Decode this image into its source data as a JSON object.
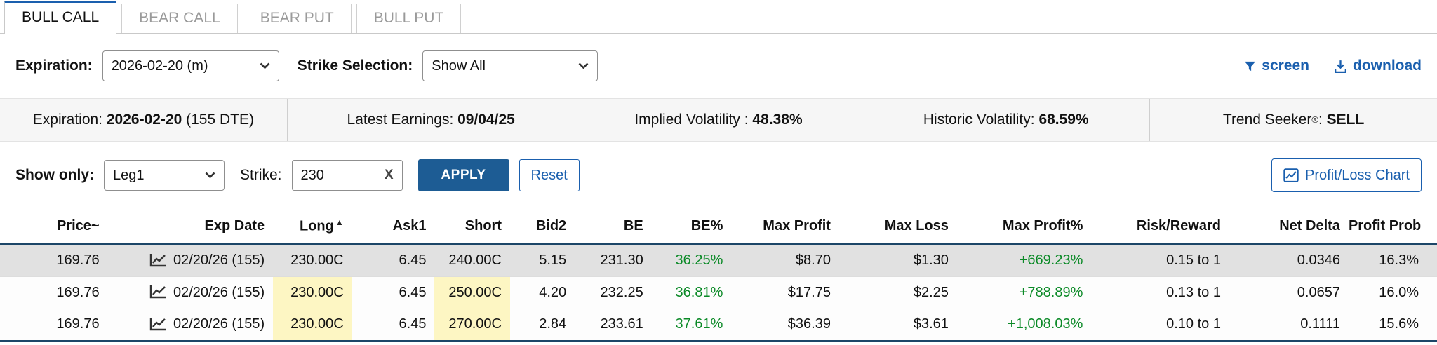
{
  "colors": {
    "accent_blue": "#1a5fae",
    "apply_blue": "#1d5c94",
    "positive_green": "#0b8a27",
    "highlight_yellow": "#fdf6c3",
    "header_line": "#1c4668",
    "selected_row": "#e1e1e1"
  },
  "tabs": [
    {
      "label": "BULL CALL",
      "active": true
    },
    {
      "label": "BEAR CALL",
      "active": false
    },
    {
      "label": "BEAR PUT",
      "active": false
    },
    {
      "label": "BULL PUT",
      "active": false
    }
  ],
  "toolbar": {
    "expiration_label": "Expiration:",
    "expiration_value": "2026-02-20 (m)",
    "strike_selection_label": "Strike Selection:",
    "strike_selection_value": "Show All",
    "screen_label": "screen",
    "download_label": "download"
  },
  "info_bar": [
    {
      "pre": "Expiration: ",
      "bold": "2026-02-20",
      "post": " (155 DTE)"
    },
    {
      "pre": "Latest Earnings: ",
      "bold": "09/04/25",
      "post": ""
    },
    {
      "pre": "Implied Volatility : ",
      "bold": "48.38%",
      "post": ""
    },
    {
      "pre": "Historic Volatility: ",
      "bold": "68.59%",
      "post": ""
    },
    {
      "pre": "Trend Seeker",
      "sup": "®",
      "mid": ": ",
      "bold": "SELL",
      "post": ""
    }
  ],
  "filters": {
    "show_only_label": "Show only:",
    "show_only_value": "Leg1",
    "strike_label": "Strike:",
    "strike_value": "230",
    "clear_label": "X",
    "apply_label": "APPLY",
    "reset_label": "Reset",
    "chart_button_label": "Profit/Loss Chart"
  },
  "table": {
    "columns": [
      {
        "label": "Price~",
        "key": "price"
      },
      {
        "label": "Exp Date",
        "key": "exp_date",
        "icon": true
      },
      {
        "label": "Long",
        "key": "long",
        "sort": "asc",
        "highlight": true
      },
      {
        "label": "Ask1",
        "key": "ask1"
      },
      {
        "label": "Short",
        "key": "short",
        "highlight": true
      },
      {
        "label": "Bid2",
        "key": "bid2"
      },
      {
        "label": "BE",
        "key": "be"
      },
      {
        "label": "BE%",
        "key": "be_pct",
        "positive": true
      },
      {
        "label": "Max Profit",
        "key": "max_profit"
      },
      {
        "label": "Max Loss",
        "key": "max_loss"
      },
      {
        "label": "Max Profit%",
        "key": "max_profit_pct",
        "positive": true
      },
      {
        "label": "Risk/Reward",
        "key": "risk_reward"
      },
      {
        "label": "Net Delta",
        "key": "net_delta"
      },
      {
        "label": "Profit Prob",
        "key": "profit_prob"
      }
    ],
    "rows": [
      {
        "selected": true,
        "leg_highlight": false,
        "cells": {
          "price": "169.76",
          "exp_date": "02/20/26 (155)",
          "long": "230.00C",
          "ask1": "6.45",
          "short": "240.00C",
          "bid2": "5.15",
          "be": "231.30",
          "be_pct": "36.25%",
          "max_profit": "$8.70",
          "max_loss": "$1.30",
          "max_profit_pct": "+669.23%",
          "risk_reward": "0.15 to 1",
          "net_delta": "0.0346",
          "profit_prob": "16.3%"
        }
      },
      {
        "selected": false,
        "leg_highlight": true,
        "cells": {
          "price": "169.76",
          "exp_date": "02/20/26 (155)",
          "long": "230.00C",
          "ask1": "6.45",
          "short": "250.00C",
          "bid2": "4.20",
          "be": "232.25",
          "be_pct": "36.81%",
          "max_profit": "$17.75",
          "max_loss": "$2.25",
          "max_profit_pct": "+788.89%",
          "risk_reward": "0.13 to 1",
          "net_delta": "0.0657",
          "profit_prob": "16.0%"
        }
      },
      {
        "selected": false,
        "leg_highlight": true,
        "cells": {
          "price": "169.76",
          "exp_date": "02/20/26 (155)",
          "long": "230.00C",
          "ask1": "6.45",
          "short": "270.00C",
          "bid2": "2.84",
          "be": "233.61",
          "be_pct": "37.61%",
          "max_profit": "$36.39",
          "max_loss": "$3.61",
          "max_profit_pct": "+1,008.03%",
          "risk_reward": "0.10 to 1",
          "net_delta": "0.1111",
          "profit_prob": "15.6%"
        }
      }
    ]
  }
}
